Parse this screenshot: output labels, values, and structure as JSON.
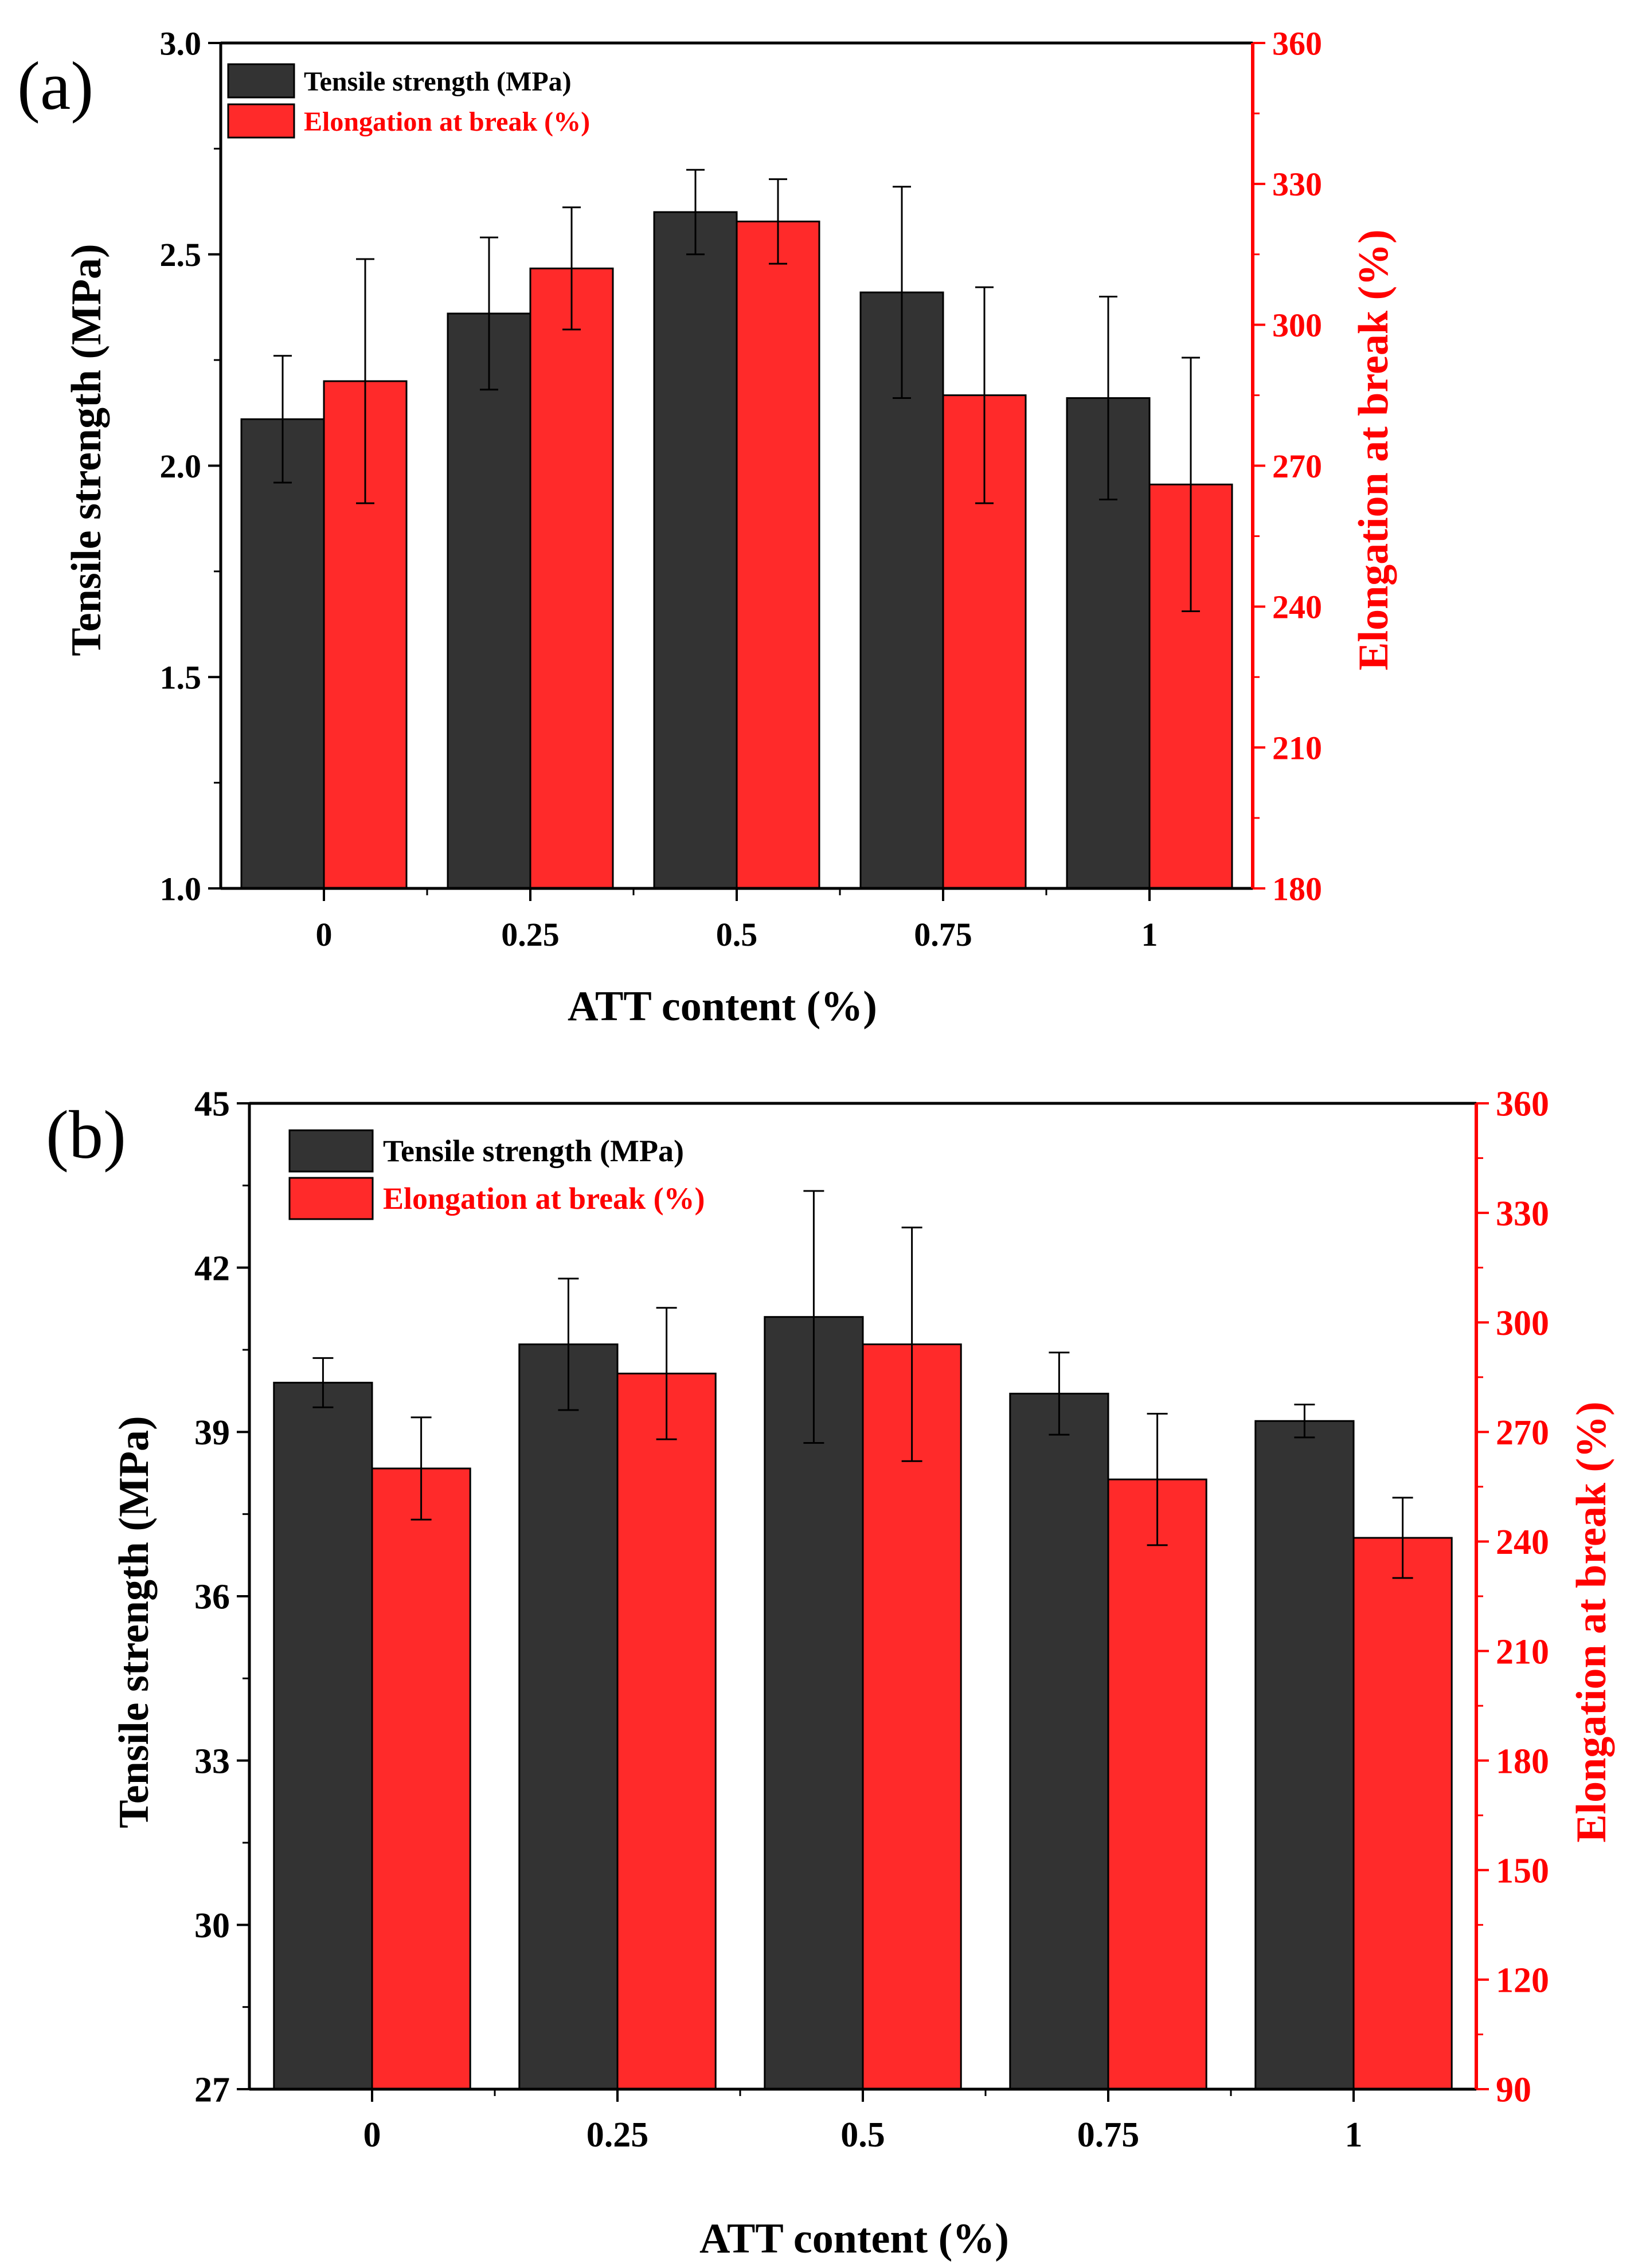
{
  "colors": {
    "tensile": "#333333",
    "elongation": "#ff2a2a",
    "axis_left": "#000000",
    "axis_right": "#ff0000"
  },
  "chart_data": [
    {
      "panel": "(a)",
      "type": "bar",
      "categories": [
        "0",
        "0.25",
        "0.5",
        "0.75",
        "1"
      ],
      "xlabel": "ATT content (%)",
      "ylabel": "Tensile strength (MPa)",
      "ylabel_right": "Elongation at break (%)",
      "ylim": [
        1.0,
        3.0
      ],
      "yticks": [
        "1.0",
        "1.5",
        "2.0",
        "2.5",
        "3.0"
      ],
      "ytick_values": [
        1.0,
        1.5,
        2.0,
        2.5,
        3.0
      ],
      "ylim_right": [
        180,
        360
      ],
      "yticks_right": [
        "180",
        "210",
        "240",
        "270",
        "300",
        "330",
        "360"
      ],
      "ytick_values_right": [
        180,
        210,
        240,
        270,
        300,
        330,
        360
      ],
      "legend": [
        "Tensile strength (MPa)",
        "Elongation at break (%)"
      ],
      "legend_position": "top-left",
      "series": [
        {
          "name": "Tensile strength (MPa)",
          "axis": "left",
          "values": [
            2.11,
            2.36,
            2.6,
            2.41,
            2.16
          ],
          "errors": [
            0.15,
            0.18,
            0.1,
            0.25,
            0.24
          ]
        },
        {
          "name": "Elongation at break (%)",
          "axis": "right",
          "values": [
            288,
            312,
            322,
            285,
            266
          ],
          "errors": [
            26,
            13,
            9,
            23,
            27
          ]
        }
      ]
    },
    {
      "panel": "(b)",
      "type": "bar",
      "categories": [
        "0",
        "0.25",
        "0.5",
        "0.75",
        "1"
      ],
      "xlabel": "ATT content (%)",
      "ylabel": "Tensile strength (MPa)",
      "ylabel_right": "Elongation at break (%)",
      "ylim": [
        27,
        45
      ],
      "yticks": [
        "27",
        "30",
        "33",
        "36",
        "39",
        "42",
        "45"
      ],
      "ytick_values": [
        27,
        30,
        33,
        36,
        39,
        42,
        45
      ],
      "ylim_right": [
        90,
        360
      ],
      "yticks_right": [
        "90",
        "120",
        "150",
        "180",
        "210",
        "240",
        "270",
        "300",
        "330",
        "360"
      ],
      "ytick_values_right": [
        90,
        120,
        150,
        180,
        210,
        240,
        270,
        300,
        330,
        360
      ],
      "legend": [
        "Tensile strength (MPa)",
        "Elongation at break (%)"
      ],
      "legend_position": "top-left",
      "series": [
        {
          "name": "Tensile strength (MPa)",
          "axis": "left",
          "values": [
            39.9,
            40.6,
            41.1,
            39.7,
            39.2
          ],
          "errors": [
            0.45,
            1.2,
            2.3,
            0.75,
            0.3
          ]
        },
        {
          "name": "Elongation at break (%)",
          "axis": "right",
          "values": [
            260,
            286,
            294,
            257,
            241
          ],
          "errors": [
            14,
            18,
            32,
            18,
            11
          ]
        }
      ]
    }
  ]
}
